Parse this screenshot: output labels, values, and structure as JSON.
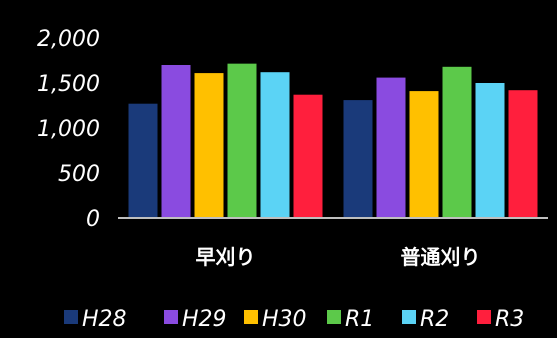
{
  "chart_data": {
    "type": "bar",
    "categories": [
      "早刈り",
      "普通刈り"
    ],
    "series": [
      {
        "name": "H28",
        "color": "#1a3a7a",
        "values": [
          1270,
          1310
        ]
      },
      {
        "name": "H29",
        "color": "#8a4be0",
        "values": [
          1700,
          1560
        ]
      },
      {
        "name": "H30",
        "color": "#ffc000",
        "values": [
          1610,
          1410
        ]
      },
      {
        "name": "R1",
        "color": "#5cc94a",
        "values": [
          1715,
          1680
        ]
      },
      {
        "name": "R2",
        "color": "#5bd3f5",
        "values": [
          1620,
          1500
        ]
      },
      {
        "name": "R3",
        "color": "#ff1f3d",
        "values": [
          1370,
          1420
        ]
      }
    ],
    "yticks": [
      "0",
      "500",
      "1,000",
      "1,500",
      "2,000"
    ],
    "ytick_values": [
      0,
      500,
      1000,
      1500,
      2000
    ],
    "ylim": [
      0,
      2000
    ],
    "grid": false,
    "legend": "bottom",
    "title": "",
    "xlabel": "",
    "ylabel": ""
  }
}
